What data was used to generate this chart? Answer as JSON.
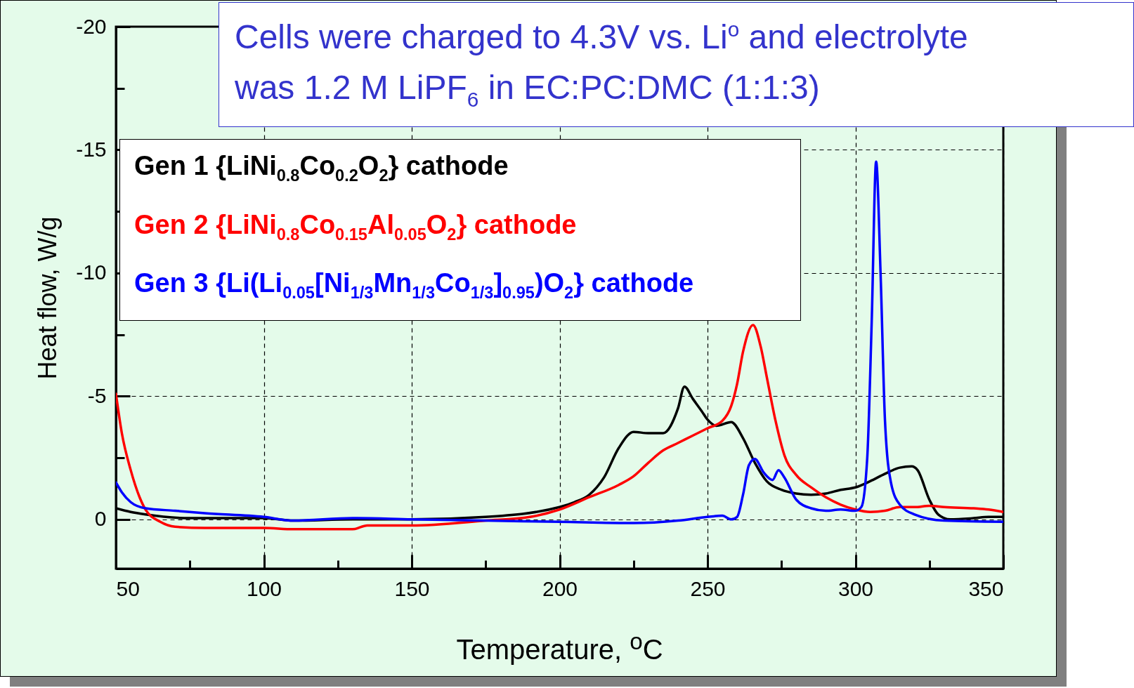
{
  "chart_data": {
    "type": "line",
    "xlabel": "Temperature, $^{o}$C",
    "ylabel": "Heat flow, W/g",
    "annotations": [
      "Cells were charged to 4.3V vs. Li$^{o}$ and electrolyte was 1.2 M LiPF$_{6}$ in EC:PC:DMC (1:1:3)"
    ],
    "xlim": [
      50,
      350
    ],
    "ylim": [
      2,
      -20
    ],
    "xticks": [
      50,
      {
        "value": 75,
        "label": null
      },
      100,
      {
        "value": 125,
        "label": null
      },
      150,
      {
        "value": 175,
        "label": null
      },
      200,
      {
        "value": 225,
        "label": null
      },
      250,
      {
        "value": 275,
        "label": null
      },
      300,
      {
        "value": 325,
        "label": null
      },
      350
    ],
    "yticks": [
      -20,
      {
        "value": -17.5,
        "label": null
      },
      -15,
      {
        "value": -12.5,
        "label": null
      },
      -10,
      {
        "value": -7.5,
        "label": null
      },
      -5,
      {
        "value": -2.5,
        "label": null
      },
      0
    ],
    "grid": true,
    "legend": "top left",
    "marker": "none",
    "series": [
      {
        "name": "Gen 1 {LiNi$_{0.8}$Co$_{0.2}$O$_{2}$} cathode",
        "color": "#000000",
        "x": [
          50,
          55,
          60,
          75,
          100,
          110,
          130,
          150,
          175,
          200,
          205,
          210,
          215,
          220,
          225,
          230,
          235,
          240,
          242.2,
          245,
          248,
          250,
          253,
          258,
          262,
          266,
          270,
          275,
          280,
          285,
          290,
          295,
          300,
          305,
          310,
          315,
          319,
          321,
          325,
          328,
          332,
          340,
          345,
          350
        ],
        "values": [
          -0.45,
          -0.3,
          -0.2,
          -0.05,
          -0.05,
          0.05,
          0,
          0,
          -0.1,
          -0.5,
          -0.7,
          -1.0,
          -1.7,
          -2.9,
          -3.55,
          -3.5,
          -3.5,
          -4.5,
          -5.39,
          -4.9,
          -4.4,
          -4.05,
          -3.8,
          -3.95,
          -3.3,
          -2.3,
          -1.55,
          -1.2,
          -1.05,
          -1.0,
          -1.05,
          -1.2,
          -1.3,
          -1.55,
          -1.85,
          -2.1,
          -2.15,
          -2.0,
          -0.8,
          -0.2,
          0,
          -0.05,
          -0.1,
          -0.1
        ]
      },
      {
        "name": "Gen 2 {LiNi$_{0.8}$Co$_{0.15}$Al$_{0.05}$O$_{2}$} cathode",
        "color": "#ff0000",
        "x": [
          50,
          52,
          55,
          58,
          60,
          65,
          70,
          80,
          100,
          110,
          130,
          135,
          150,
          175,
          190,
          200,
          210,
          220,
          225,
          230,
          235,
          240,
          245,
          250,
          255,
          258,
          260,
          262,
          265.4,
          268,
          270,
          273,
          276,
          280,
          285,
          290,
          295,
          300,
          305,
          310,
          315,
          320,
          325,
          330,
          340,
          345,
          350
        ],
        "values": [
          -5.1,
          -3.5,
          -2.0,
          -0.9,
          -0.4,
          0.1,
          0.3,
          0.35,
          0.35,
          0.4,
          0.4,
          0.25,
          0.25,
          0.05,
          -0.1,
          -0.4,
          -0.9,
          -1.4,
          -1.75,
          -2.3,
          -2.8,
          -3.1,
          -3.4,
          -3.7,
          -4.0,
          -4.6,
          -5.5,
          -6.8,
          -7.89,
          -7.0,
          -5.8,
          -4.0,
          -2.6,
          -1.8,
          -1.3,
          -0.9,
          -0.6,
          -0.4,
          -0.3,
          -0.35,
          -0.5,
          -0.5,
          -0.55,
          -0.5,
          -0.45,
          -0.4,
          -0.3
        ]
      },
      {
        "name": "Gen 3 {Li(Li$_{0.05}$[Ni$_{1/3}$Mn$_{1/3}$Co$_{1/3}$]$_{0.95}$)O$_{2}$} cathode",
        "color": "#0000ff",
        "x": [
          50,
          52,
          55,
          60,
          70,
          80,
          100,
          110,
          130,
          150,
          175,
          200,
          225,
          240,
          250,
          255,
          258,
          260,
          262,
          264,
          266,
          269,
          272,
          274,
          276,
          280,
          285,
          290,
          295,
          300,
          302,
          304,
          305.5,
          307,
          308.5,
          310,
          312,
          315,
          320,
          330,
          350
        ],
        "values": [
          -1.5,
          -1.1,
          -0.7,
          -0.45,
          -0.35,
          -0.25,
          -0.1,
          0.05,
          -0.05,
          0,
          0.05,
          0.1,
          0.15,
          0.05,
          -0.1,
          -0.15,
          0,
          -0.1,
          -1.0,
          -2.2,
          -2.45,
          -1.9,
          -1.6,
          -2.0,
          -1.7,
          -0.8,
          -0.45,
          -0.35,
          -0.4,
          -0.35,
          -0.5,
          -2.5,
          -8.0,
          -14.52,
          -10.0,
          -4.0,
          -1.5,
          -0.6,
          -0.2,
          0.05,
          0.1
        ]
      }
    ]
  }
}
